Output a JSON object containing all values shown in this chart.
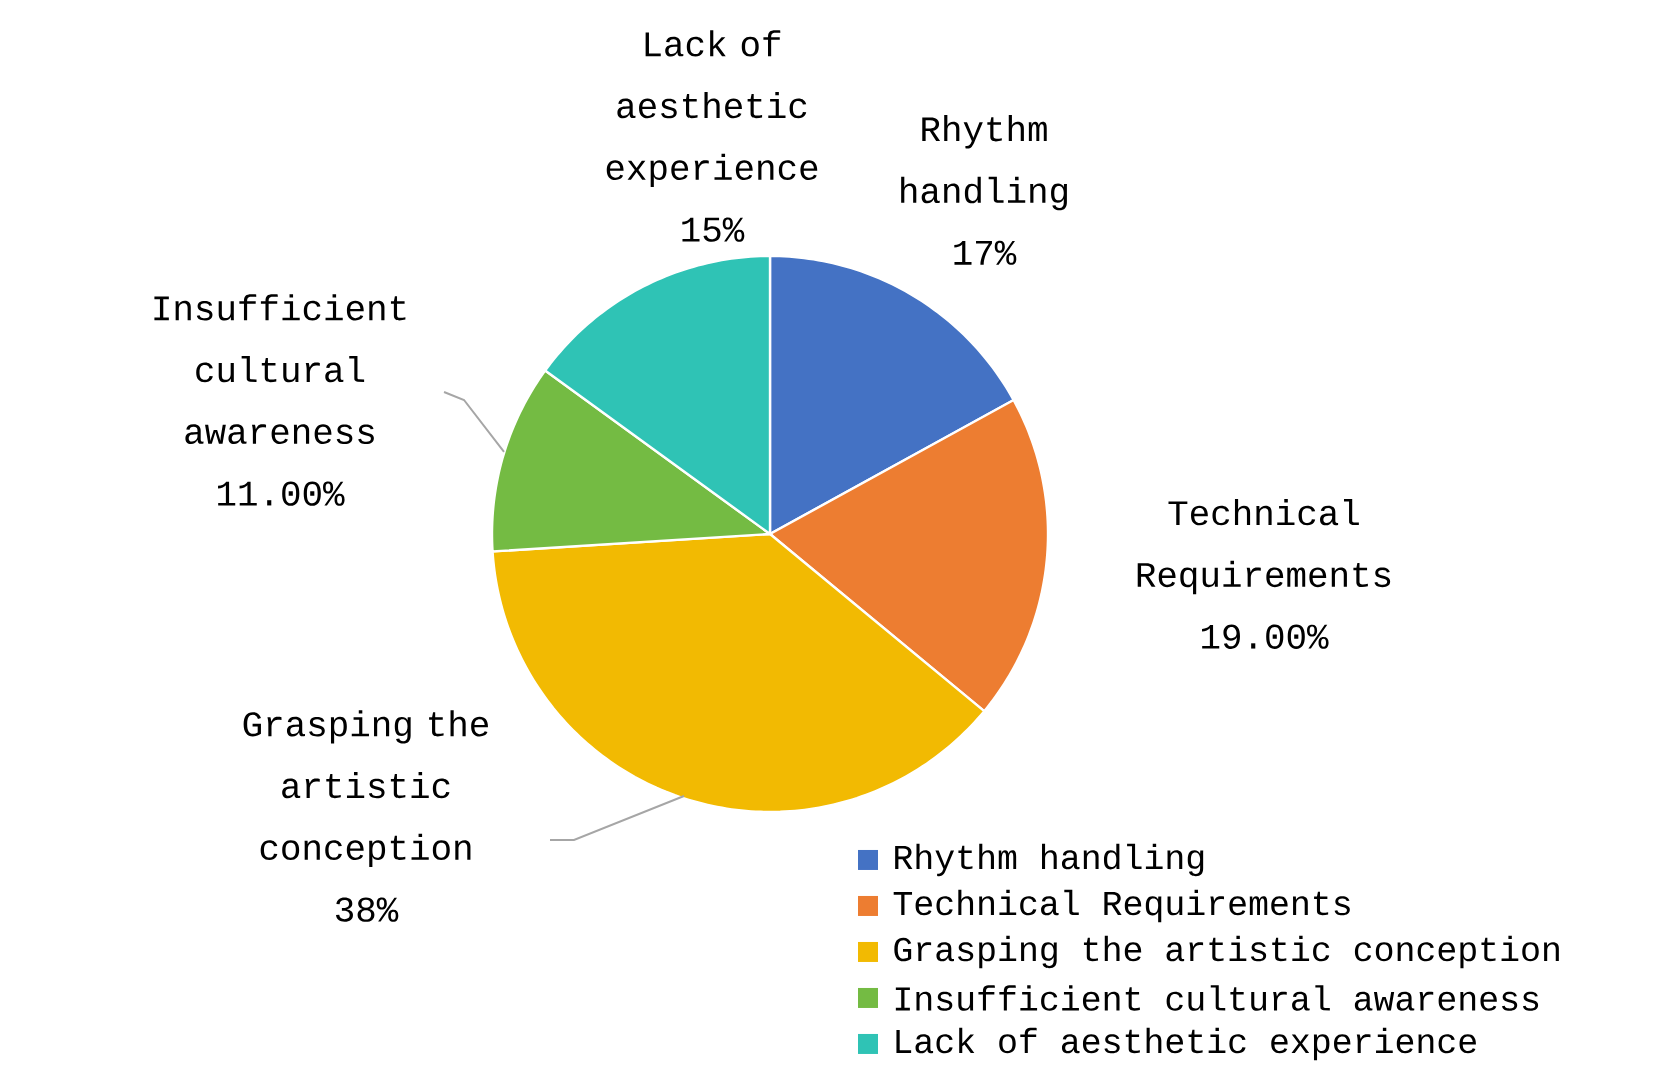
{
  "chart_data": {
    "type": "pie",
    "categories": [
      "Rhythm handling",
      "Technical Requirements",
      "Grasping the artistic conception",
      "Insufficient cultural awareness",
      "Lack of aesthetic experience"
    ],
    "values": [
      17,
      19,
      38,
      11,
      15
    ],
    "value_labels": [
      "17%",
      "19.00%",
      "38%",
      "11.00%",
      "15%"
    ],
    "colors": [
      "#4472c4",
      "#ed7d31",
      "#f2ba02",
      "#74bb43",
      "#2fc3b5"
    ],
    "legend": "bottom right"
  }
}
